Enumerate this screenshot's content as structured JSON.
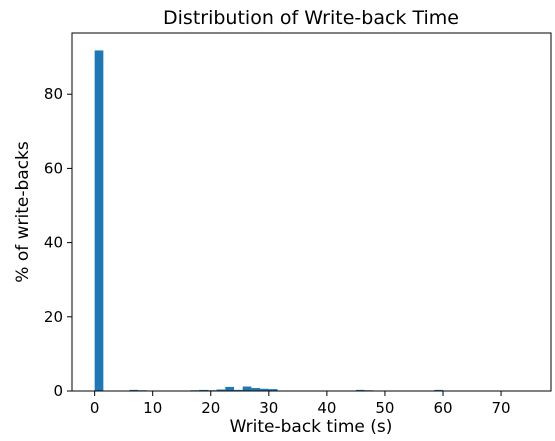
{
  "chart_data": {
    "type": "bar",
    "title": "Distribution of Write-back Time",
    "xlabel": "Write-back time (s)",
    "ylabel": "% of write-backs",
    "xlim": [
      -3.9,
      78.6
    ],
    "ylim": [
      0,
      96.5
    ],
    "xticks": [
      0,
      10,
      20,
      30,
      40,
      50,
      60,
      70
    ],
    "yticks": [
      0,
      20,
      40,
      60,
      80
    ],
    "grid": false,
    "bin_width": 1.5,
    "bins": [
      {
        "start": 0.0,
        "value": 91.8
      },
      {
        "start": 1.5,
        "value": 0.1
      },
      {
        "start": 6.0,
        "value": 0.3
      },
      {
        "start": 7.5,
        "value": 0.2
      },
      {
        "start": 12.0,
        "value": 0.1
      },
      {
        "start": 16.5,
        "value": 0.2
      },
      {
        "start": 18.0,
        "value": 0.3
      },
      {
        "start": 19.5,
        "value": 0.2
      },
      {
        "start": 21.0,
        "value": 0.4
      },
      {
        "start": 22.5,
        "value": 1.1
      },
      {
        "start": 24.0,
        "value": 0.3
      },
      {
        "start": 25.5,
        "value": 1.2
      },
      {
        "start": 27.0,
        "value": 0.8
      },
      {
        "start": 28.5,
        "value": 0.6
      },
      {
        "start": 30.0,
        "value": 0.5
      },
      {
        "start": 45.0,
        "value": 0.3
      },
      {
        "start": 46.5,
        "value": 0.2
      },
      {
        "start": 58.5,
        "value": 0.3
      }
    ],
    "bar_color": "#1f77b4"
  }
}
